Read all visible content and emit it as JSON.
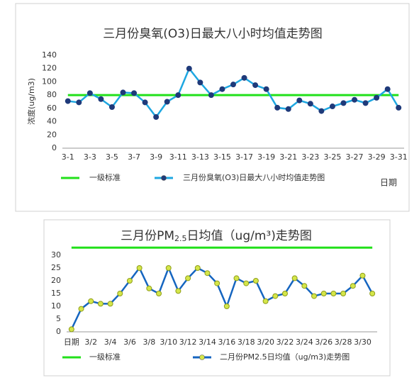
{
  "chart_data": [
    {
      "type": "line",
      "title": "三月份臭氧(O3)日最大八小时均值走势图",
      "y_label": "浓度(ug/m3)",
      "x_label": "日期",
      "categories": [
        "3-1",
        null,
        "3-3",
        null,
        "3-5",
        null,
        "3-7",
        null,
        "3-9",
        null,
        "3-11",
        null,
        "3-13",
        null,
        "3-15",
        null,
        "3-17",
        null,
        "3-19",
        null,
        "3-21",
        null,
        "3-23",
        null,
        "3-25",
        null,
        "3-27",
        null,
        "3-29",
        null,
        "3-31"
      ],
      "series": [
        {
          "name": "一级标准",
          "color": "#22e01a",
          "values": [
            80,
            80,
            80,
            80,
            80,
            80,
            80,
            80,
            80,
            80,
            80,
            80,
            80,
            80,
            80,
            80,
            80,
            80,
            80,
            80,
            80,
            80,
            80,
            80,
            80,
            80,
            80,
            80,
            80,
            80,
            80
          ]
        },
        {
          "name": "三月份臭氧(O3)日最大八小时均值走势图",
          "color": "#1ea7e1",
          "marker_color": "#1f3a7a",
          "values": [
            71,
            69,
            83,
            74,
            62,
            84,
            83,
            69,
            47,
            70,
            80,
            120,
            99,
            80,
            89,
            96,
            106,
            95,
            89,
            61,
            59,
            72,
            67,
            56,
            63,
            68,
            73,
            68,
            76,
            89,
            61
          ]
        }
      ],
      "ylim": [
        0,
        140
      ],
      "yticks": [
        0,
        20,
        40,
        60,
        80,
        100,
        120,
        140
      ],
      "grid": false
    },
    {
      "type": "line",
      "title_parts": [
        "三月份PM",
        "2.5",
        "日均值（ug/m³)走势图"
      ],
      "categories": [
        "日期",
        null,
        "3/2",
        null,
        "3/4",
        null,
        "3/6",
        null,
        "3/8",
        null,
        "3/10",
        null,
        "3/12",
        null,
        "3/14",
        null,
        "3/16",
        null,
        "3/18",
        null,
        "3/20",
        null,
        "3/22",
        null,
        "3/24",
        null,
        "3/26",
        null,
        "3/28",
        null,
        "3/30",
        null
      ],
      "series": [
        {
          "name": "一级标准",
          "color": "#22e01a",
          "values": [
            33,
            33,
            33,
            33,
            33,
            33,
            33,
            33,
            33,
            33,
            33,
            33,
            33,
            33,
            33,
            33,
            33,
            33,
            33,
            33,
            33,
            33,
            33,
            33,
            33,
            33,
            33,
            33,
            33,
            33,
            33,
            33
          ]
        },
        {
          "name": "二月份PM2.5日均值（ug/m3)走势图",
          "color": "#1565c0",
          "marker_color": "#d4e64a",
          "values": [
            1,
            9,
            12,
            11,
            11,
            15,
            20,
            25,
            17,
            15,
            25,
            16,
            21,
            25,
            23,
            19,
            10,
            21,
            19,
            20,
            12,
            14,
            15,
            21,
            18,
            14,
            15,
            15,
            15,
            18,
            22,
            15
          ]
        }
      ],
      "ylim": [
        0,
        30
      ],
      "yticks": [
        0,
        5,
        10,
        15,
        20,
        25,
        30
      ],
      "grid": false
    }
  ]
}
